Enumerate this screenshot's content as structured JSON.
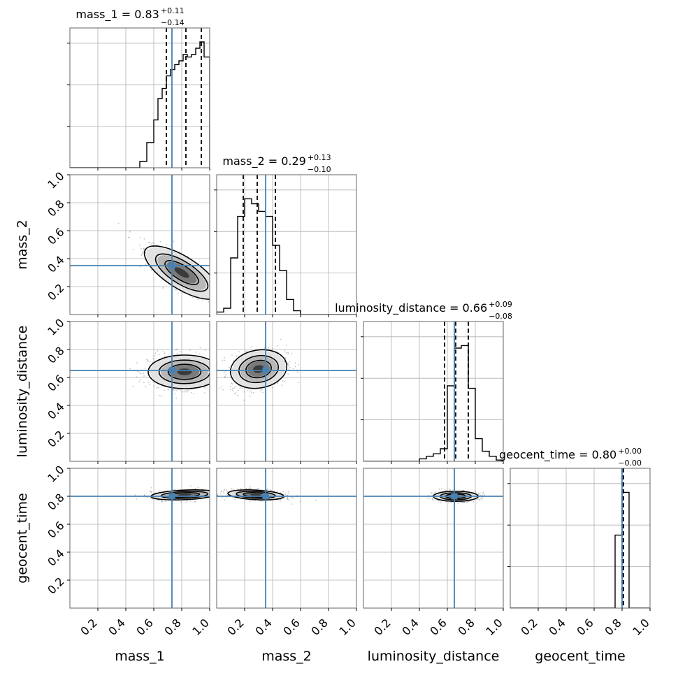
{
  "chart_data": {
    "type": "corner",
    "parameters": [
      "mass_1",
      "mass_2",
      "luminosity_distance",
      "geocent_time"
    ],
    "axis_labels": [
      "mass_1",
      "mass_2",
      "luminosity_distance",
      "geocent_time"
    ],
    "range": [
      0,
      1
    ],
    "tick_labels": [
      "0.2",
      "0.4",
      "0.6",
      "0.8",
      "1.0"
    ],
    "tick_values": [
      0.2,
      0.4,
      0.6,
      0.8,
      1.0
    ],
    "grid": true,
    "colors": {
      "truth": "#4682b4",
      "hist": "#000000",
      "quantile": "#000000",
      "grid": "#b0b0b0"
    },
    "truths": [
      0.73,
      0.35,
      0.65,
      0.8
    ],
    "titles": [
      {
        "name": "mass_1",
        "prefix": "mass_1 = 0.83",
        "plus": "+0.11",
        "minus": "−0.14"
      },
      {
        "name": "mass_2",
        "prefix": "mass_2 = 0.29",
        "plus": "+0.13",
        "minus": "−0.10"
      },
      {
        "name": "luminosity_distance",
        "prefix": "luminosity_distance = 0.66",
        "plus": "+0.09",
        "minus": "−0.08"
      },
      {
        "name": "geocent_time",
        "prefix": "geocent_time = 0.80",
        "plus": "+0.00",
        "minus": "−0.00"
      }
    ],
    "quantiles": [
      [
        0.69,
        0.83,
        0.94
      ],
      [
        0.19,
        0.29,
        0.42
      ],
      [
        0.58,
        0.66,
        0.75
      ],
      [
        0.8,
        0.8,
        0.81
      ]
    ],
    "histograms": [
      {
        "edges": [
          0.5,
          0.55,
          0.6,
          0.63,
          0.66,
          0.69,
          0.72,
          0.75,
          0.78,
          0.81,
          0.84,
          0.87,
          0.9,
          0.93,
          0.96,
          1.0
        ],
        "counts": [
          0.05,
          0.2,
          0.38,
          0.55,
          0.63,
          0.73,
          0.78,
          0.82,
          0.85,
          0.9,
          0.88,
          0.9,
          0.95,
          1.0,
          0.88
        ]
      },
      {
        "edges": [
          0.0,
          0.05,
          0.1,
          0.15,
          0.2,
          0.25,
          0.3,
          0.35,
          0.4,
          0.45,
          0.5,
          0.55,
          0.6
        ],
        "counts": [
          0.02,
          0.05,
          0.45,
          0.78,
          0.92,
          0.88,
          0.82,
          0.78,
          0.55,
          0.35,
          0.12,
          0.03
        ]
      },
      {
        "edges": [
          0.4,
          0.45,
          0.5,
          0.55,
          0.6,
          0.65,
          0.7,
          0.75,
          0.8,
          0.85,
          0.9,
          0.95,
          1.0
        ],
        "counts": [
          0.02,
          0.04,
          0.06,
          0.1,
          0.6,
          0.9,
          0.92,
          0.58,
          0.18,
          0.08,
          0.04,
          0.01
        ]
      },
      {
        "edges": [
          0.75,
          0.8,
          0.85
        ],
        "counts": [
          0.58,
          0.92
        ]
      }
    ],
    "pairs": [
      {
        "row": 1,
        "col": 0,
        "cx": 0.8,
        "cy": 0.3,
        "sx": 0.13,
        "sy": 0.1,
        "rho": -0.82
      },
      {
        "row": 2,
        "col": 0,
        "cx": 0.82,
        "cy": 0.64,
        "sx": 0.13,
        "sy": 0.06,
        "rho": 0.0
      },
      {
        "row": 2,
        "col": 1,
        "cx": 0.3,
        "cy": 0.66,
        "sx": 0.1,
        "sy": 0.07,
        "rho": 0.25
      },
      {
        "row": 3,
        "col": 0,
        "cx": 0.82,
        "cy": 0.81,
        "sx": 0.12,
        "sy": 0.018,
        "rho": 0.3
      },
      {
        "row": 3,
        "col": 1,
        "cx": 0.28,
        "cy": 0.81,
        "sx": 0.1,
        "sy": 0.018,
        "rho": -0.3
      },
      {
        "row": 3,
        "col": 2,
        "cx": 0.66,
        "cy": 0.8,
        "sx": 0.08,
        "sy": 0.018,
        "rho": 0.0
      }
    ]
  }
}
